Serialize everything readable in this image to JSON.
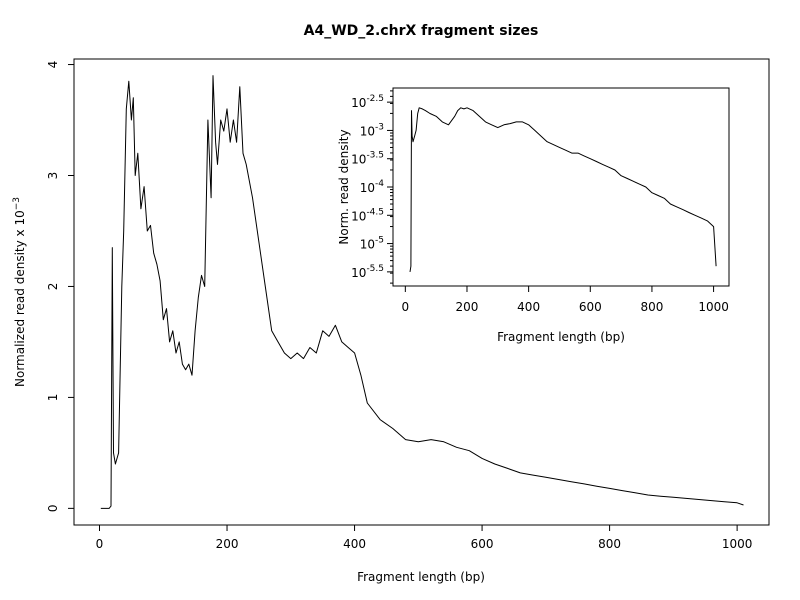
{
  "chart_data": [
    {
      "type": "line",
      "title": "A4_WD_2.chrX fragment sizes",
      "xlabel": "Fragment length (bp)",
      "ylabel": "Normalized read density x 10",
      "ylabel_exponent": "−3",
      "xlim": [
        -40,
        1050
      ],
      "ylim": [
        -0.15,
        4.05
      ],
      "x_ticks": [
        0,
        200,
        400,
        600,
        800,
        1000
      ],
      "y_ticks": [
        0,
        1,
        2,
        3,
        4
      ],
      "grid": false,
      "series": [
        {
          "color": "#000000",
          "x": [
            2,
            15,
            18,
            20,
            22,
            25,
            30,
            35,
            38,
            42,
            46,
            50,
            53,
            56,
            60,
            65,
            70,
            75,
            80,
            85,
            90,
            95,
            100,
            105,
            110,
            115,
            120,
            125,
            130,
            135,
            140,
            145,
            150,
            155,
            160,
            165,
            170,
            175,
            178,
            182,
            185,
            190,
            195,
            200,
            205,
            210,
            215,
            220,
            225,
            230,
            240,
            250,
            260,
            270,
            280,
            290,
            300,
            310,
            320,
            330,
            340,
            350,
            360,
            370,
            380,
            390,
            400,
            410,
            420,
            440,
            460,
            480,
            500,
            520,
            540,
            560,
            580,
            600,
            620,
            640,
            660,
            680,
            700,
            720,
            740,
            760,
            780,
            800,
            820,
            840,
            860,
            880,
            900,
            920,
            940,
            960,
            980,
            1000,
            1010
          ],
          "values": [
            0.0,
            0.0,
            0.02,
            2.35,
            0.5,
            0.4,
            0.5,
            2.0,
            2.5,
            3.6,
            3.85,
            3.5,
            3.7,
            3.0,
            3.2,
            2.7,
            2.9,
            2.5,
            2.55,
            2.3,
            2.2,
            2.05,
            1.7,
            1.8,
            1.5,
            1.6,
            1.4,
            1.5,
            1.3,
            1.25,
            1.3,
            1.2,
            1.6,
            1.9,
            2.1,
            2.0,
            3.5,
            2.8,
            3.9,
            3.3,
            3.1,
            3.5,
            3.4,
            3.6,
            3.3,
            3.5,
            3.3,
            3.8,
            3.2,
            3.1,
            2.8,
            2.4,
            2.0,
            1.6,
            1.5,
            1.4,
            1.35,
            1.4,
            1.35,
            1.45,
            1.4,
            1.6,
            1.55,
            1.65,
            1.5,
            1.45,
            1.4,
            1.2,
            0.95,
            0.8,
            0.72,
            0.62,
            0.6,
            0.62,
            0.6,
            0.55,
            0.52,
            0.45,
            0.4,
            0.36,
            0.32,
            0.3,
            0.28,
            0.26,
            0.24,
            0.22,
            0.2,
            0.18,
            0.16,
            0.14,
            0.12,
            0.11,
            0.1,
            0.09,
            0.08,
            0.07,
            0.06,
            0.05,
            0.03
          ]
        }
      ]
    },
    {
      "type": "line",
      "title": "",
      "xlabel": "Fragment length (bp)",
      "ylabel": "Norm. read density",
      "xlim": [
        -40,
        1050
      ],
      "ylim": [
        -5.75,
        -2.25
      ],
      "y_scale": "log10",
      "x_ticks": [
        0,
        200,
        400,
        600,
        800,
        1000
      ],
      "y_ticks": [
        -2.5,
        -3,
        -3.5,
        -4,
        -4.5,
        -5,
        -5.5
      ],
      "y_tick_labels": [
        {
          "base": "10",
          "exp": "-2.5"
        },
        {
          "base": "10",
          "exp": "-3"
        },
        {
          "base": "10",
          "exp": "-3.5"
        },
        {
          "base": "10",
          "exp": "-4"
        },
        {
          "base": "10",
          "exp": "-4.5"
        },
        {
          "base": "10",
          "exp": "-5"
        },
        {
          "base": "10",
          "exp": "-5.5"
        }
      ],
      "grid": false,
      "series": [
        {
          "color": "#000000",
          "x": [
            15,
            18,
            20,
            22,
            25,
            30,
            35,
            40,
            45,
            55,
            65,
            80,
            100,
            120,
            140,
            160,
            170,
            180,
            190,
            200,
            220,
            240,
            260,
            280,
            300,
            320,
            340,
            360,
            380,
            400,
            420,
            440,
            460,
            480,
            500,
            520,
            540,
            560,
            580,
            600,
            620,
            640,
            660,
            680,
            700,
            720,
            740,
            760,
            780,
            800,
            820,
            840,
            860,
            880,
            900,
            920,
            940,
            960,
            980,
            1000,
            1008
          ],
          "values": [
            -5.5,
            -5.4,
            -2.65,
            -3.1,
            -3.2,
            -3.1,
            -3.0,
            -2.7,
            -2.6,
            -2.62,
            -2.65,
            -2.7,
            -2.75,
            -2.85,
            -2.9,
            -2.75,
            -2.65,
            -2.6,
            -2.62,
            -2.6,
            -2.65,
            -2.75,
            -2.85,
            -2.9,
            -2.95,
            -2.9,
            -2.88,
            -2.85,
            -2.85,
            -2.9,
            -3.0,
            -3.1,
            -3.2,
            -3.25,
            -3.3,
            -3.35,
            -3.4,
            -3.4,
            -3.45,
            -3.5,
            -3.55,
            -3.6,
            -3.65,
            -3.7,
            -3.8,
            -3.85,
            -3.9,
            -3.95,
            -4.0,
            -4.1,
            -4.15,
            -4.2,
            -4.3,
            -4.35,
            -4.4,
            -4.45,
            -4.5,
            -4.55,
            -4.6,
            -4.7,
            -5.4
          ]
        }
      ]
    }
  ]
}
